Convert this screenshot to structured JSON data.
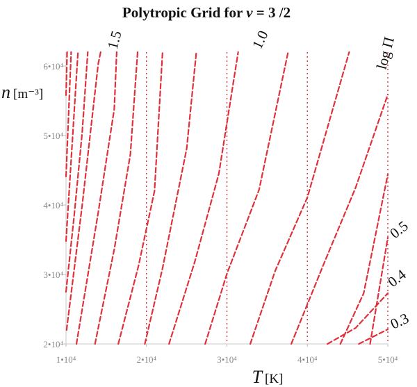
{
  "chart_data": {
    "type": "line",
    "title_prefix": "Polytropic Grid for ",
    "title_symbol": "ν",
    "title_suffix": " = 3 /2",
    "x_axis": {
      "symbol": "T",
      "unit": "[K]",
      "range": [
        10000,
        50000
      ],
      "ticks": [
        10000,
        20000,
        30000,
        40000,
        50000
      ],
      "tick_labels": [
        "1•10⁴",
        "2•10⁴",
        "3•10⁴",
        "4•10⁴",
        "5•10⁴"
      ]
    },
    "y_axis": {
      "symbol": "n",
      "unit": "[m⁻³]",
      "range": [
        20000,
        62000
      ],
      "ticks": [
        20000,
        30000,
        40000,
        50000,
        60000
      ],
      "tick_labels": [
        "2•10⁴",
        "3•10⁴",
        "4•10⁴",
        "5•10⁴",
        "6•10⁴"
      ]
    },
    "grid": {
      "vertical_dotted_lines_at_x": [
        20000,
        30000,
        40000,
        50000
      ],
      "style": "red dotted"
    },
    "series_style": {
      "color": "#e0303a",
      "dash": "dashed"
    },
    "curve_labels": [
      {
        "text": "1.5",
        "value": 1.5
      },
      {
        "text": "1.0",
        "value": 1.0
      },
      {
        "text": "log Π",
        "value": null
      },
      {
        "text": "0.5",
        "value": 0.5
      },
      {
        "text": "0.4",
        "value": 0.4
      },
      {
        "text": "0.3",
        "value": 0.3
      }
    ],
    "series": [
      {
        "log_pi": 1.8,
        "x": [
          10000,
          10140
        ],
        "y": [
          55800,
          62000
        ]
      },
      {
        "log_pi": 1.7,
        "x": [
          10000,
          10640
        ],
        "y": [
          44100,
          62000
        ]
      },
      {
        "log_pi": 1.6,
        "x": [
          10000,
          11490
        ],
        "y": [
          34800,
          62000
        ]
      },
      {
        "log_pi": 1.5,
        "x": [
          10000,
          11000,
          12000,
          12700
        ],
        "y": [
          27500,
          38350,
          50350,
          62000
        ]
      },
      {
        "log_pi": 1.4,
        "x": [
          10070,
          12000,
          14000,
          14300
        ],
        "y": [
          22000,
          39900,
          60300,
          62000
        ]
      },
      {
        "log_pi": 1.3,
        "x": [
          11300,
          14000,
          16000,
          16300
        ],
        "y": [
          20000,
          38900,
          53800,
          62000
        ]
      },
      {
        "log_pi": 1.2,
        "x": [
          13600,
          16000,
          18000,
          18900
        ],
        "y": [
          20000,
          33600,
          47300,
          62000
        ]
      },
      {
        "log_pi": 1.1,
        "x": [
          16500,
          19000,
          21000,
          22000
        ],
        "y": [
          20000,
          31200,
          42000,
          62000
        ]
      },
      {
        "log_pi": 1.0,
        "x": [
          19800,
          22000,
          25000,
          26200
        ],
        "y": [
          20000,
          30900,
          48100,
          62000
        ]
      },
      {
        "log_pi": 0.9,
        "x": [
          22800,
          26000,
          29000,
          31400
        ],
        "y": [
          20000,
          31800,
          44500,
          62000
        ]
      },
      {
        "log_pi": 0.8,
        "x": [
          27300,
          30000,
          34000,
          37600
        ],
        "y": [
          20000,
          30100,
          42200,
          62000
        ]
      },
      {
        "log_pi": 0.7,
        "x": [
          32900,
          36000,
          40000,
          45200
        ],
        "y": [
          20000,
          30500,
          41100,
          62000
        ]
      },
      {
        "log_pi": 0.6,
        "x": [
          38000,
          42000,
          46000,
          50000
        ],
        "y": [
          20000,
          31400,
          42500,
          55900
        ]
      },
      {
        "log_pi": 0.5,
        "x": [
          44100,
          47000,
          50000
        ],
        "y": [
          20000,
          27300,
          44400
        ]
      },
      {
        "log_pi": 0.4,
        "x": [
          47800,
          50000
        ],
        "y": [
          20000,
          35300
        ]
      },
      {
        "log_pi": 0.3,
        "x": [
          42500,
          46000,
          50000
        ],
        "y": [
          20000,
          22300,
          27300
        ]
      },
      {
        "log_pi": 0.2,
        "x": [
          46400,
          50000
        ],
        "y": [
          20000,
          22100
        ]
      }
    ]
  }
}
